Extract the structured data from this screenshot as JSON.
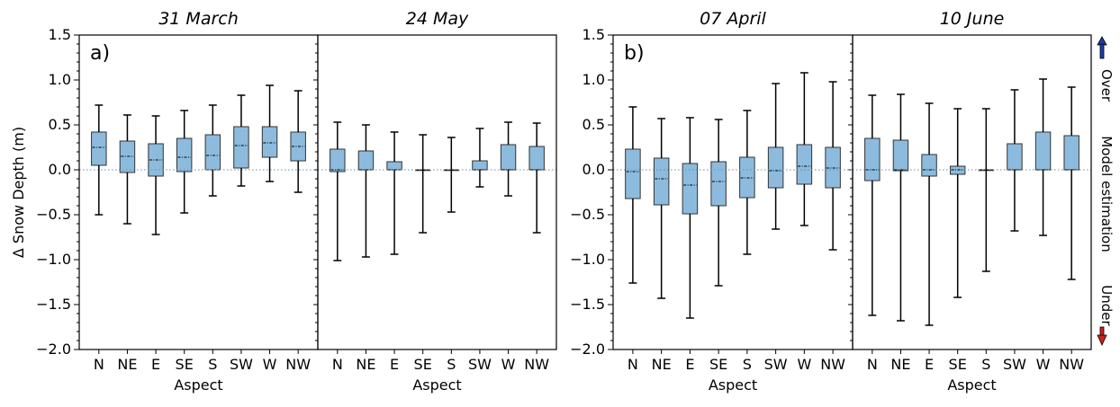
{
  "ylabel": "Δ Snow Depth (m)",
  "xlabel": "Aspect",
  "y_ticks": [
    "1.5",
    "1.0",
    "0.5",
    "0.0",
    "−0.5",
    "−1.0",
    "−1.5",
    "−2.0"
  ],
  "side_labels": {
    "over": "Over",
    "model_estimation": "Model estimation",
    "under": "Under"
  },
  "colors": {
    "box_fill": "#8dbbdd",
    "box_edge": "#333333",
    "median_line": "#000000",
    "zero_line": "#5b8db8",
    "arrow_up": "#1f3ea8",
    "arrow_down": "#cc1f1f"
  },
  "chart_data": [
    {
      "type": "box",
      "panel_label": "a)",
      "title": "31 March",
      "xlabel": "Aspect",
      "ylabel": "Δ Snow Depth (m)",
      "ylim": [
        -2.0,
        1.5
      ],
      "categories": [
        "N",
        "NE",
        "E",
        "SE",
        "S",
        "SW",
        "W",
        "NW"
      ],
      "boxes": [
        {
          "min": -0.5,
          "q1": 0.05,
          "median": 0.25,
          "q3": 0.42,
          "max": 0.72
        },
        {
          "min": -0.6,
          "q1": -0.03,
          "median": 0.15,
          "q3": 0.32,
          "max": 0.61
        },
        {
          "min": -0.72,
          "q1": -0.07,
          "median": 0.11,
          "q3": 0.29,
          "max": 0.6
        },
        {
          "min": -0.48,
          "q1": -0.02,
          "median": 0.14,
          "q3": 0.35,
          "max": 0.66
        },
        {
          "min": -0.29,
          "q1": 0.0,
          "median": 0.16,
          "q3": 0.39,
          "max": 0.72
        },
        {
          "min": -0.18,
          "q1": 0.02,
          "median": 0.27,
          "q3": 0.48,
          "max": 0.83
        },
        {
          "min": -0.13,
          "q1": 0.14,
          "median": 0.3,
          "q3": 0.48,
          "max": 0.94
        },
        {
          "min": -0.25,
          "q1": 0.1,
          "median": 0.26,
          "q3": 0.42,
          "max": 0.88
        }
      ]
    },
    {
      "type": "box",
      "panel_label": "",
      "title": "24 May",
      "xlabel": "Aspect",
      "ylabel": "",
      "ylim": [
        -2.0,
        1.5
      ],
      "categories": [
        "N",
        "NE",
        "E",
        "SE",
        "S",
        "SW",
        "W",
        "NW"
      ],
      "boxes": [
        {
          "min": -1.01,
          "q1": -0.02,
          "median": 0.0,
          "q3": 0.23,
          "max": 0.53
        },
        {
          "min": -0.97,
          "q1": 0.0,
          "median": 0.0,
          "q3": 0.21,
          "max": 0.5
        },
        {
          "min": -0.94,
          "q1": 0.0,
          "median": 0.0,
          "q3": 0.09,
          "max": 0.42
        },
        {
          "min": -0.7,
          "q1": 0.0,
          "median": 0.0,
          "q3": 0.0,
          "max": 0.39
        },
        {
          "min": -0.47,
          "q1": 0.0,
          "median": 0.0,
          "q3": 0.0,
          "max": 0.36
        },
        {
          "min": -0.19,
          "q1": 0.0,
          "median": 0.0,
          "q3": 0.1,
          "max": 0.46
        },
        {
          "min": -0.29,
          "q1": 0.0,
          "median": 0.0,
          "q3": 0.28,
          "max": 0.53
        },
        {
          "min": -0.7,
          "q1": 0.0,
          "median": 0.0,
          "q3": 0.26,
          "max": 0.52
        }
      ]
    },
    {
      "type": "box",
      "panel_label": "b)",
      "title": "07 April",
      "xlabel": "Aspect",
      "ylabel": "",
      "ylim": [
        -2.0,
        1.5
      ],
      "categories": [
        "N",
        "NE",
        "E",
        "SE",
        "S",
        "SW",
        "W",
        "NW"
      ],
      "boxes": [
        {
          "min": -1.26,
          "q1": -0.32,
          "median": -0.02,
          "q3": 0.23,
          "max": 0.7
        },
        {
          "min": -1.43,
          "q1": -0.39,
          "median": -0.1,
          "q3": 0.13,
          "max": 0.57
        },
        {
          "min": -1.65,
          "q1": -0.49,
          "median": -0.17,
          "q3": 0.07,
          "max": 0.58
        },
        {
          "min": -1.29,
          "q1": -0.4,
          "median": -0.13,
          "q3": 0.09,
          "max": 0.56
        },
        {
          "min": -0.94,
          "q1": -0.31,
          "median": -0.09,
          "q3": 0.14,
          "max": 0.66
        },
        {
          "min": -0.66,
          "q1": -0.2,
          "median": -0.01,
          "q3": 0.25,
          "max": 0.96
        },
        {
          "min": -0.62,
          "q1": -0.16,
          "median": 0.04,
          "q3": 0.28,
          "max": 1.08
        },
        {
          "min": -0.89,
          "q1": -0.2,
          "median": 0.02,
          "q3": 0.25,
          "max": 0.98
        }
      ]
    },
    {
      "type": "box",
      "panel_label": "",
      "title": "10 June",
      "xlabel": "Aspect",
      "ylabel": "",
      "ylim": [
        -2.0,
        1.5
      ],
      "categories": [
        "N",
        "NE",
        "E",
        "SE",
        "S",
        "SW",
        "W",
        "NW"
      ],
      "boxes": [
        {
          "min": -1.62,
          "q1": -0.12,
          "median": 0.0,
          "q3": 0.35,
          "max": 0.83
        },
        {
          "min": -1.68,
          "q1": -0.01,
          "median": 0.0,
          "q3": 0.33,
          "max": 0.84
        },
        {
          "min": -1.73,
          "q1": -0.07,
          "median": 0.0,
          "q3": 0.17,
          "max": 0.74
        },
        {
          "min": -1.42,
          "q1": -0.05,
          "median": 0.0,
          "q3": 0.04,
          "max": 0.68
        },
        {
          "min": -1.13,
          "q1": 0.0,
          "median": 0.0,
          "q3": 0.0,
          "max": 0.68
        },
        {
          "min": -0.68,
          "q1": 0.0,
          "median": 0.0,
          "q3": 0.29,
          "max": 0.89
        },
        {
          "min": -0.73,
          "q1": 0.0,
          "median": 0.0,
          "q3": 0.42,
          "max": 1.01
        },
        {
          "min": -1.22,
          "q1": 0.0,
          "median": 0.0,
          "q3": 0.38,
          "max": 0.92
        }
      ]
    }
  ]
}
